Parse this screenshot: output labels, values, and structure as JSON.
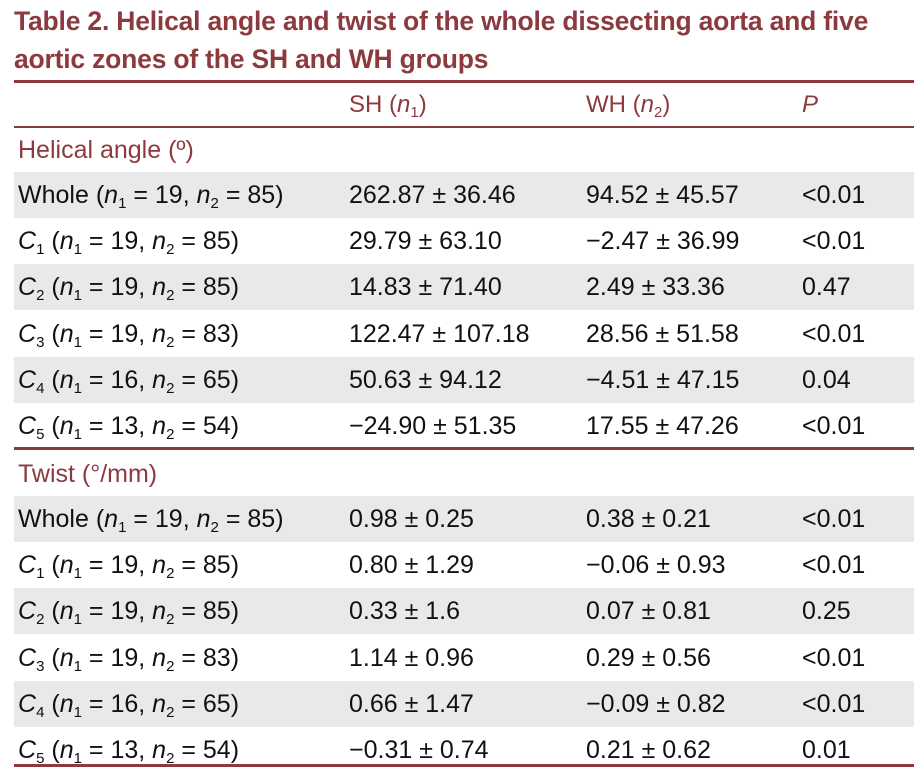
{
  "title": "Table 2.  Helical angle and twist of the whole dissecting aorta and five aortic zones of the SH and WH groups",
  "columns": {
    "sh": {
      "prefix": "SH (",
      "var": "n",
      "sub": "1",
      "suffix": ")"
    },
    "wh": {
      "prefix": "WH (",
      "var": "n",
      "sub": "2",
      "suffix": ")"
    },
    "p": "P"
  },
  "sections": [
    {
      "label": "Helical angle (º)",
      "rows": [
        {
          "zone": "Whole",
          "zone_sub": "",
          "n1": "19",
          "n2": "85",
          "sh": "262.87 ± 36.46",
          "wh": "94.52 ± 45.57",
          "p": "<0.01"
        },
        {
          "zone": "C",
          "zone_sub": "1",
          "n1": "19",
          "n2": "85",
          "sh": "29.79 ± 63.10",
          "wh": "−2.47 ± 36.99",
          "p": "<0.01"
        },
        {
          "zone": "C",
          "zone_sub": "2",
          "n1": "19",
          "n2": "85",
          "sh": "14.83 ± 71.40",
          "wh": "2.49 ± 33.36",
          "p": "0.47"
        },
        {
          "zone": "C",
          "zone_sub": "3",
          "n1": "19",
          "n2": "83",
          "sh": "122.47 ± 107.18",
          "wh": "28.56 ± 51.58",
          "p": "<0.01"
        },
        {
          "zone": "C",
          "zone_sub": "4",
          "n1": "16",
          "n2": "65",
          "sh": "50.63 ± 94.12",
          "wh": "−4.51 ± 47.15",
          "p": "0.04"
        },
        {
          "zone": "C",
          "zone_sub": "5",
          "n1": "13",
          "n2": "54",
          "sh": "−24.90 ± 51.35",
          "wh": "17.55 ± 47.26",
          "p": "<0.01"
        }
      ]
    },
    {
      "label": "Twist (°/mm)",
      "rows": [
        {
          "zone": "Whole",
          "zone_sub": "",
          "n1": "19",
          "n2": "85",
          "sh": "0.98 ± 0.25",
          "wh": "0.38 ± 0.21",
          "p": "<0.01"
        },
        {
          "zone": "C",
          "zone_sub": "1",
          "n1": "19",
          "n2": "85",
          "sh": "0.80 ± 1.29",
          "wh": "−0.06 ± 0.93",
          "p": "<0.01"
        },
        {
          "zone": "C",
          "zone_sub": "2",
          "n1": "19",
          "n2": "85",
          "sh": "0.33 ± 1.6",
          "wh": "0.07 ± 0.81",
          "p": "0.25"
        },
        {
          "zone": "C",
          "zone_sub": "3",
          "n1": "19",
          "n2": "83",
          "sh": "1.14 ± 0.96",
          "wh": "0.29 ± 0.56",
          "p": "<0.01"
        },
        {
          "zone": "C",
          "zone_sub": "4",
          "n1": "16",
          "n2": "65",
          "sh": "0.66 ± 1.47",
          "wh": "−0.09 ± 0.82",
          "p": "<0.01"
        },
        {
          "zone": "C",
          "zone_sub": "5",
          "n1": "13",
          "n2": "54",
          "sh": "−0.31 ± 0.74",
          "wh": "0.21 ± 0.62",
          "p": "0.01"
        }
      ]
    }
  ],
  "colors": {
    "accent": "#8c3a3e",
    "row_shade": "#e9e9ea",
    "text": "#111111"
  }
}
